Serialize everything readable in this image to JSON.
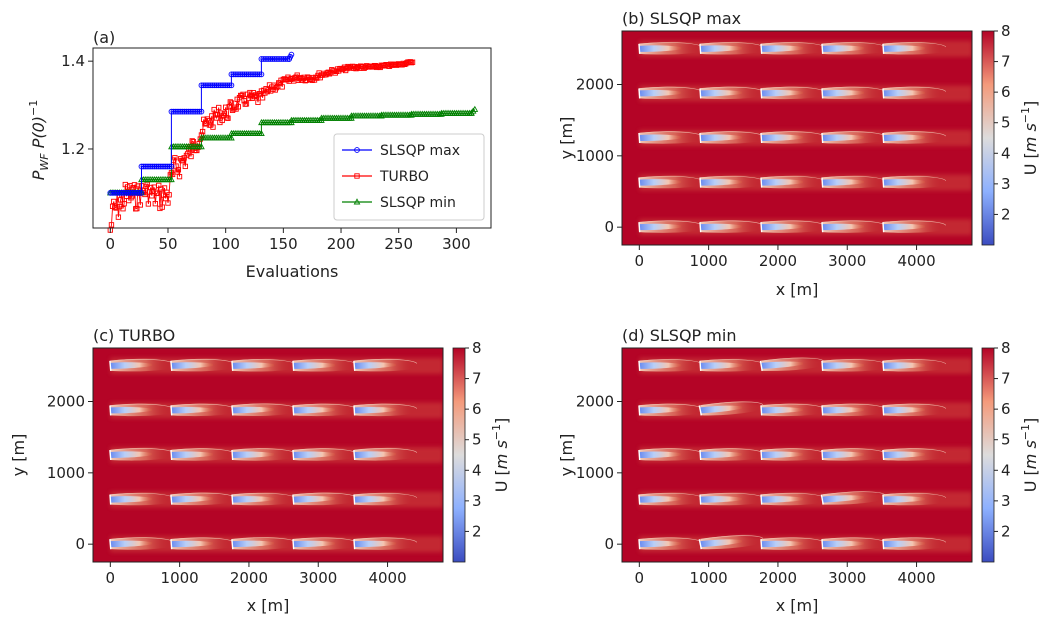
{
  "chart_data": [
    {
      "type": "line",
      "panel": "(a)",
      "title": "(a)",
      "xlabel": "Evaluations",
      "ylabel_main": "P",
      "ylabel_sub": "WF",
      "ylabel_rest": " P(0)",
      "ylabel_sup": "−1",
      "xlim": [
        -15,
        330
      ],
      "ylim": [
        1.02,
        1.43
      ],
      "xticks": [
        0,
        50,
        100,
        150,
        200,
        250,
        300
      ],
      "yticks": [
        1.2,
        1.4
      ],
      "grid": false,
      "legend_position": "lower-right",
      "series": [
        {
          "name": "SLSQP max",
          "color": "#0000ff",
          "marker": "circle",
          "segments": [
            {
              "x": [
                0,
                27
              ],
              "y": [
                1.1,
                1.1
              ]
            },
            {
              "x": [
                27,
                53
              ],
              "y": [
                1.16,
                1.16
              ]
            },
            {
              "x": [
                53,
                79
              ],
              "y": [
                1.285,
                1.285
              ]
            },
            {
              "x": [
                79,
                105
              ],
              "y": [
                1.345,
                1.345
              ]
            },
            {
              "x": [
                105,
                131
              ],
              "y": [
                1.37,
                1.37
              ]
            },
            {
              "x": [
                131,
                155
              ],
              "y": [
                1.405,
                1.405
              ]
            },
            {
              "x": [
                155,
                157
              ],
              "y": [
                1.405,
                1.415
              ]
            }
          ]
        },
        {
          "name": "TURBO",
          "color": "#ff0000",
          "marker": "square",
          "anchors": {
            "x": [
              0,
              3,
              8,
              15,
              22,
              30,
              40,
              50,
              55,
              62,
              70,
              78,
              85,
              95,
              100,
              110,
              120,
              130,
              140,
              150,
              160,
              175,
              190,
              210,
              230,
              250,
              262
            ],
            "y": [
              1.03,
              1.1,
              1.11,
              1.13,
              1.12,
              1.13,
              1.12,
              1.13,
              1.18,
              1.2,
              1.22,
              1.26,
              1.28,
              1.3,
              1.3,
              1.32,
              1.33,
              1.33,
              1.35,
              1.36,
              1.37,
              1.37,
              1.38,
              1.39,
              1.39,
              1.395,
              1.4
            ]
          },
          "noise_amplitude": [
            0.03,
            0.08,
            0.07,
            0.07,
            0.06,
            0.05,
            0.06,
            0.07,
            0.06,
            0.06,
            0.05,
            0.05,
            0.04,
            0.04,
            0.04,
            0.03,
            0.03,
            0.03,
            0.02,
            0.02,
            0.015,
            0.015,
            0.01,
            0.008,
            0.006,
            0.005,
            0.004
          ]
        },
        {
          "name": "SLSQP min",
          "color": "#008000",
          "marker": "triangle",
          "segments": [
            {
              "x": [
                0,
                27
              ],
              "y": [
                1.1,
                1.1
              ]
            },
            {
              "x": [
                27,
                53
              ],
              "y": [
                1.13,
                1.13
              ]
            },
            {
              "x": [
                53,
                79
              ],
              "y": [
                1.205,
                1.205
              ]
            },
            {
              "x": [
                79,
                105
              ],
              "y": [
                1.225,
                1.225
              ]
            },
            {
              "x": [
                105,
                131
              ],
              "y": [
                1.235,
                1.235
              ]
            },
            {
              "x": [
                131,
                157
              ],
              "y": [
                1.26,
                1.26
              ]
            },
            {
              "x": [
                157,
                183
              ],
              "y": [
                1.265,
                1.265
              ]
            },
            {
              "x": [
                183,
                209
              ],
              "y": [
                1.27,
                1.27
              ]
            },
            {
              "x": [
                209,
                235
              ],
              "y": [
                1.275,
                1.275
              ]
            },
            {
              "x": [
                235,
                261
              ],
              "y": [
                1.277,
                1.277
              ]
            },
            {
              "x": [
                261,
                287
              ],
              "y": [
                1.279,
                1.279
              ]
            },
            {
              "x": [
                287,
                313
              ],
              "y": [
                1.281,
                1.281
              ]
            },
            {
              "x": [
                313,
                316
              ],
              "y": [
                1.282,
                1.29
              ]
            }
          ]
        }
      ]
    },
    {
      "type": "heatmap",
      "panel": "(b)",
      "title": "(b) SLSQP max",
      "xlabel": "x [m]",
      "ylabel": "y [m]",
      "xlim": [
        -250,
        4800
      ],
      "ylim": [
        -250,
        2750
      ],
      "xticks": [
        0,
        1000,
        2000,
        3000,
        4000
      ],
      "yticks": [
        0,
        1000,
        2000
      ],
      "turbine_rows_y": [
        0,
        625,
        1250,
        1875,
        2500
      ],
      "turbine_cols_x": [
        0,
        880,
        1760,
        2640,
        3520
      ],
      "yaw_deg": [
        [
          -4,
          -4,
          -4,
          -4,
          -4
        ],
        [
          -4,
          -4,
          -4,
          -4,
          -4
        ],
        [
          -4,
          -4,
          -4,
          -4,
          -4
        ],
        [
          -4,
          -4,
          -4,
          -4,
          -4
        ],
        [
          -4,
          -4,
          -4,
          -4,
          -4
        ]
      ],
      "colorbar": {
        "label": "U [m s⁻¹]",
        "label_main": "U [",
        "label_unit": "m s",
        "label_sup": "−1",
        "label_close": "]",
        "ticks": [
          2,
          3,
          4,
          5,
          6,
          7,
          8
        ],
        "range": [
          1,
          8
        ],
        "colormap": "coolwarm"
      }
    },
    {
      "type": "heatmap",
      "panel": "(c)",
      "title": "(c) TURBO",
      "xlabel": "x [m]",
      "ylabel": "y [m]",
      "xlim": [
        -250,
        4800
      ],
      "ylim": [
        -250,
        2750
      ],
      "xticks": [
        0,
        1000,
        2000,
        3000,
        4000
      ],
      "yticks": [
        0,
        1000,
        2000
      ],
      "turbine_rows_y": [
        0,
        625,
        1250,
        1875,
        2500
      ],
      "turbine_cols_x": [
        0,
        880,
        1760,
        2640,
        3520
      ],
      "yaw_deg": [
        [
          -5,
          -4,
          -5,
          -4,
          -4
        ],
        [
          -4,
          -5,
          -4,
          -5,
          -4
        ],
        [
          -5,
          -4,
          -4,
          -4,
          -5
        ],
        [
          -4,
          -4,
          -5,
          -4,
          -4
        ],
        [
          -5,
          -5,
          -4,
          -4,
          -5
        ]
      ],
      "colorbar": {
        "label": "U [m s⁻¹]",
        "label_main": "U [",
        "label_unit": "m s",
        "label_sup": "−1",
        "label_close": "]",
        "ticks": [
          2,
          3,
          4,
          5,
          6,
          7,
          8
        ],
        "range": [
          1,
          8
        ],
        "colormap": "coolwarm"
      }
    },
    {
      "type": "heatmap",
      "panel": "(d)",
      "title": "(d) SLSQP min",
      "xlabel": "x [m]",
      "ylabel": "y [m]",
      "xlim": [
        -250,
        4800
      ],
      "ylim": [
        -250,
        2750
      ],
      "xticks": [
        0,
        1000,
        2000,
        3000,
        4000
      ],
      "yticks": [
        0,
        1000,
        2000
      ],
      "turbine_rows_y": [
        0,
        625,
        1250,
        1875,
        2500
      ],
      "turbine_cols_x": [
        0,
        880,
        1760,
        2640,
        3520
      ],
      "yaw_deg": [
        [
          -4,
          -12,
          -4,
          -4,
          -4
        ],
        [
          -4,
          -4,
          -4,
          -10,
          -4
        ],
        [
          -4,
          -4,
          -4,
          -4,
          -4
        ],
        [
          -4,
          -12,
          -4,
          -4,
          -4
        ],
        [
          -4,
          -4,
          -10,
          -4,
          -4
        ]
      ],
      "colorbar": {
        "label": "U [m s⁻¹]",
        "label_main": "U [",
        "label_unit": "m s",
        "label_sup": "−1",
        "label_close": "]",
        "ticks": [
          2,
          3,
          4,
          5,
          6,
          7,
          8
        ],
        "range": [
          1,
          8
        ],
        "colormap": "coolwarm"
      }
    }
  ]
}
